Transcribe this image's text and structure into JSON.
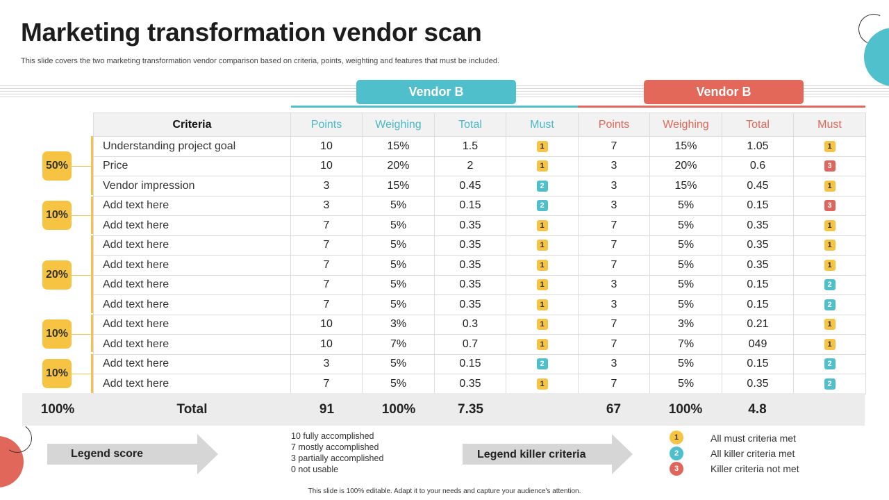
{
  "title": "Marketing transformation vendor scan",
  "subtitle": "This slide covers the two marketing transformation vendor comparison based on criteria, points, weighting and features that must be included.",
  "vendors": {
    "a": "Vendor B",
    "b": "Vendor B"
  },
  "columns": {
    "criteria": "Criteria",
    "a": [
      "Points",
      "Weighing",
      "Total",
      "Must"
    ],
    "b": [
      "Points",
      "Weighing",
      "Total",
      "Must"
    ]
  },
  "groups": [
    "50%",
    "10%",
    "20%",
    "10%",
    "10%"
  ],
  "rows": [
    {
      "criteria": "Understanding project goal",
      "a": [
        "10",
        "15%",
        "1.5"
      ],
      "a_must": "1",
      "b": [
        "7",
        "15%",
        "1.05"
      ],
      "b_must": "1"
    },
    {
      "criteria": "Price",
      "a": [
        "10",
        "20%",
        "2"
      ],
      "a_must": "1",
      "b": [
        "3",
        "20%",
        "0.6"
      ],
      "b_must": "3"
    },
    {
      "criteria": "Vendor impression",
      "a": [
        "3",
        "15%",
        "0.45"
      ],
      "a_must": "2",
      "b": [
        "3",
        "15%",
        "0.45"
      ],
      "b_must": "1"
    },
    {
      "criteria": "Add text  here",
      "a": [
        "3",
        "5%",
        "0.15"
      ],
      "a_must": "2",
      "b": [
        "3",
        "5%",
        "0.15"
      ],
      "b_must": "3"
    },
    {
      "criteria": "Add text here",
      "a": [
        "7",
        "5%",
        "0.35"
      ],
      "a_must": "1",
      "b": [
        "7",
        "5%",
        "0.35"
      ],
      "b_must": "1"
    },
    {
      "criteria": "Add text here",
      "a": [
        "7",
        "5%",
        "0.35"
      ],
      "a_must": "1",
      "b": [
        "7",
        "5%",
        "0.35"
      ],
      "b_must": "1"
    },
    {
      "criteria": "Add text here",
      "a": [
        "7",
        "5%",
        "0.35"
      ],
      "a_must": "1",
      "b": [
        "7",
        "5%",
        "0.35"
      ],
      "b_must": "1"
    },
    {
      "criteria": "Add text here",
      "a": [
        "7",
        "5%",
        "0.35"
      ],
      "a_must": "1",
      "b": [
        "3",
        "5%",
        "0.15"
      ],
      "b_must": "2"
    },
    {
      "criteria": "Add text here",
      "a": [
        "7",
        "5%",
        "0.35"
      ],
      "a_must": "1",
      "b": [
        "3",
        "5%",
        "0.15"
      ],
      "b_must": "2"
    },
    {
      "criteria": "Add text here",
      "a": [
        "10",
        "3%",
        "0.3"
      ],
      "a_must": "1",
      "b": [
        "7",
        "3%",
        "0.21"
      ],
      "b_must": "1"
    },
    {
      "criteria": "Add text here",
      "a": [
        "10",
        "7%",
        "0.7"
      ],
      "a_must": "1",
      "b": [
        "7",
        "7%",
        "049"
      ],
      "b_must": "1"
    },
    {
      "criteria": "Add text here",
      "a": [
        "3",
        "5%",
        "0.15"
      ],
      "a_must": "2",
      "b": [
        "3",
        "5%",
        "0.15"
      ],
      "b_must": "2"
    },
    {
      "criteria": "Add text here",
      "a": [
        "7",
        "5%",
        "0.35"
      ],
      "a_must": "1",
      "b": [
        "7",
        "5%",
        "0.35"
      ],
      "b_must": "2"
    }
  ],
  "totals": {
    "pct": "100%",
    "label": "Total",
    "a_points": "91",
    "a_weighing": "100%",
    "a_total": "7.35",
    "b_points": "67",
    "b_weighing": "100%",
    "b_total": "4.8"
  },
  "legend": {
    "score_title": "Legend score",
    "score_lines": [
      "10 fully accomplished",
      "7 mostly accomplished",
      "3 partially accomplished",
      "0 not usable"
    ],
    "killer_title": "Legend killer criteria",
    "killer": [
      {
        "num": "1",
        "label": "All must criteria met"
      },
      {
        "num": "2",
        "label": "All killer criteria met"
      },
      {
        "num": "3",
        "label": "Killer criteria not met"
      }
    ]
  },
  "footer": "This slide is 100% editable. Adapt it to your needs and capture your audience's attention.",
  "colors": {
    "teal": "#4fbfcb",
    "red": "#e3685a",
    "yellow": "#f6c342"
  },
  "icons": {
    "legend_score_arrow": "arrow-right-icon",
    "legend_killer_arrow": "arrow-right-icon"
  }
}
